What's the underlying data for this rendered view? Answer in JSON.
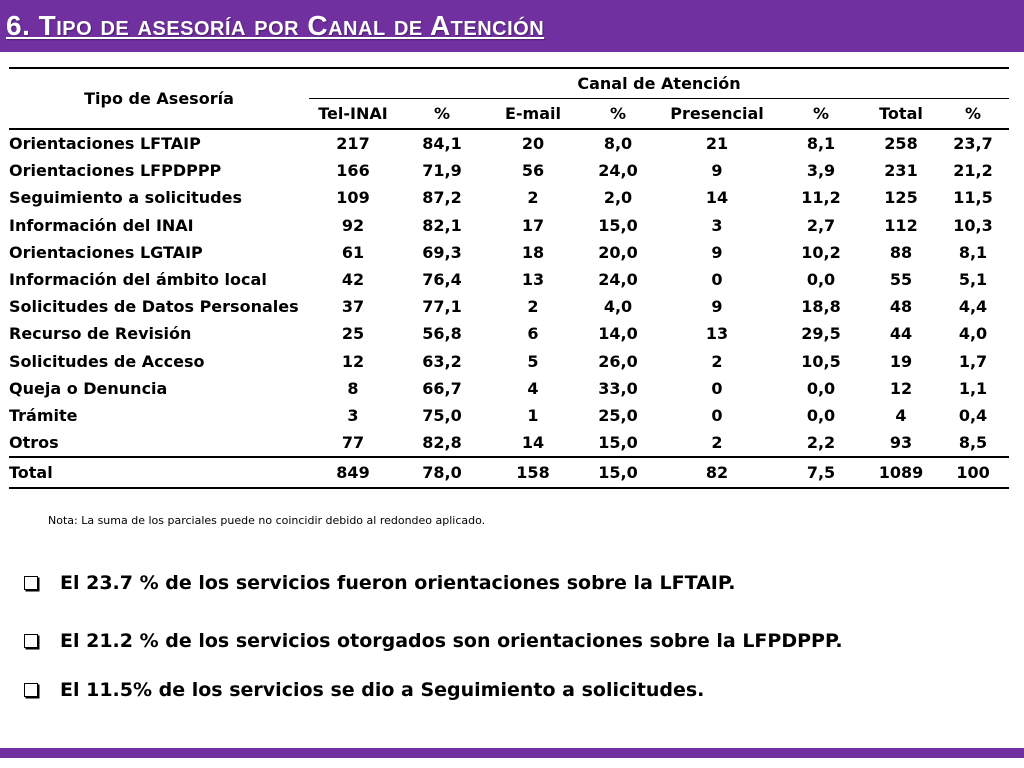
{
  "title": "6. Tipo de asesoría por Canal de Atención",
  "table": {
    "header_tipo": "Tipo de Asesoría",
    "header_canal": "Canal de Atención",
    "subheaders": [
      "Tel-INAI",
      "%",
      "E-mail",
      "%",
      "Presencial",
      "%",
      "Total",
      "%"
    ],
    "rows": [
      [
        "Orientaciones LFTAIP",
        "217",
        "84,1",
        "20",
        "8,0",
        "21",
        "8,1",
        "258",
        "23,7"
      ],
      [
        "Orientaciones LFPDPPP",
        "166",
        "71,9",
        "56",
        "24,0",
        "9",
        "3,9",
        "231",
        "21,2"
      ],
      [
        "Seguimiento a solicitudes",
        "109",
        "87,2",
        "2",
        "2,0",
        "14",
        "11,2",
        "125",
        "11,5"
      ],
      [
        "Información del INAI",
        "92",
        "82,1",
        "17",
        "15,0",
        "3",
        "2,7",
        "112",
        "10,3"
      ],
      [
        "Orientaciones LGTAIP",
        "61",
        "69,3",
        "18",
        "20,0",
        "9",
        "10,2",
        "88",
        "8,1"
      ],
      [
        "Información del ámbito local",
        "42",
        "76,4",
        "13",
        "24,0",
        "0",
        "0,0",
        "55",
        "5,1"
      ],
      [
        "Solicitudes de Datos Personales",
        "37",
        "77,1",
        "2",
        "4,0",
        "9",
        "18,8",
        "48",
        "4,4"
      ],
      [
        "Recurso de Revisión",
        "25",
        "56,8",
        "6",
        "14,0",
        "13",
        "29,5",
        "44",
        "4,0"
      ],
      [
        "Solicitudes de Acceso",
        "12",
        "63,2",
        "5",
        "26,0",
        "2",
        "10,5",
        "19",
        "1,7"
      ],
      [
        "Queja o Denuncia",
        "8",
        "66,7",
        "4",
        "33,0",
        "0",
        "0,0",
        "12",
        "1,1"
      ],
      [
        "Trámite",
        "3",
        "75,0",
        "1",
        "25,0",
        "0",
        "0,0",
        "4",
        "0,4"
      ],
      [
        "Otros",
        "77",
        "82,8",
        "14",
        "15,0",
        "2",
        "2,2",
        "93",
        "8,5"
      ]
    ],
    "total_row": [
      "Total",
      "849",
      "78,0",
      "158",
      "15,0",
      "82",
      "7,5",
      "1089",
      "100"
    ]
  },
  "note": "Nota: La suma de los parciales puede no coincidir debido al redondeo aplicado.",
  "bullets": [
    "El 23.7 % de los servicios fueron orientaciones sobre la LFTAIP.",
    "El 21.2 % de los servicios otorgados son orientaciones sobre la LFPDPPP.",
    "El 11.5% de los servicios se dio a Seguimiento a solicitudes."
  ],
  "colors": {
    "accent": "#7030a0",
    "text": "#000000",
    "background": "#ffffff"
  },
  "icons": {
    "bullet": "checkbox-bullet-icon"
  }
}
